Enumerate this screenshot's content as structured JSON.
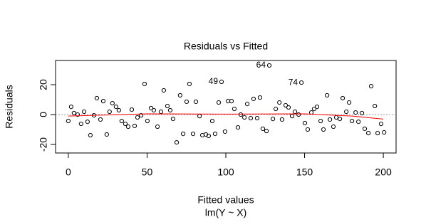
{
  "chart_data": {
    "type": "scatter",
    "title": "Residuals vs Fitted",
    "x_label": "Fitted values",
    "subtitle": "lm(Y ~ X)",
    "y_label": "Residuals",
    "xlim": [
      -8.1,
      208.1
    ],
    "ylim": [
      -25.7,
      36.2
    ],
    "xticks": [
      0,
      50,
      100,
      150,
      200
    ],
    "yticks": [
      -20,
      0,
      20
    ],
    "hline": 0,
    "color": "#000000",
    "smooth_color": "#ff0000",
    "x": [
      0,
      1.8,
      3.6,
      5.9,
      8.1,
      10,
      12.2,
      14,
      16.3,
      18.1,
      20.4,
      22.2,
      24.4,
      26.2,
      28,
      30.3,
      32.1,
      33.9,
      36.2,
      38,
      40.3,
      42.1,
      43.9,
      46.2,
      48.4,
      50.2,
      52.5,
      54.3,
      56.6,
      58.8,
      60.6,
      62.9,
      64.7,
      66.5,
      68.8,
      71,
      72.9,
      75.1,
      76.9,
      79.2,
      81,
      83.3,
      85.1,
      87.3,
      89.1,
      91.4,
      93.2,
      95.5,
      97.3,
      99.5,
      101.4,
      103.6,
      105.4,
      107.7,
      109.5,
      111.8,
      113.6,
      115.8,
      117.6,
      119.9,
      121.7,
      123.5,
      125.8,
      127.6,
      129.9,
      131.7,
      134,
      135.7,
      138,
      139.8,
      142.1,
      143.9,
      146.2,
      148,
      150.2,
      152,
      154.3,
      156.1,
      157.9,
      160.2,
      162,
      164.3,
      166.1,
      168.3,
      170.1,
      172.4,
      174.2,
      176.5,
      178.3,
      180.1,
      182.4,
      184.2,
      186.4,
      188.2,
      190.5,
      192.3,
      194.6,
      196.4,
      198.6,
      200.5
    ],
    "values": [
      -4.3,
      5.2,
      1,
      0,
      -6.2,
      1.9,
      -4.8,
      -13.8,
      -0.5,
      11,
      -3.3,
      9,
      -13.3,
      1.9,
      7.6,
      5.2,
      2.9,
      -4.3,
      -6.2,
      -8.1,
      3.3,
      -7.6,
      -1.9,
      -0.5,
      20.5,
      -4.3,
      4.3,
      2.9,
      -8.1,
      1.9,
      16.2,
      5.7,
      2.9,
      -2.9,
      -18.6,
      12.9,
      -12.9,
      8.6,
      20.5,
      -12.9,
      8.6,
      -1,
      -13.8,
      -13.3,
      -14.3,
      -4.3,
      -12.9,
      8.1,
      21.9,
      -11.4,
      9,
      9,
      3.8,
      -8.6,
      0,
      -1.9,
      7.1,
      -2.4,
      10.5,
      -2.4,
      11.4,
      -9.5,
      -11,
      32.9,
      -2.9,
      3.8,
      8.1,
      -3.3,
      6.2,
      4.8,
      -1,
      1.9,
      0,
      21.4,
      -5.7,
      -10,
      1.4,
      3.8,
      5.2,
      -4.3,
      -10,
      12.9,
      -3.3,
      -8.1,
      -1.9,
      -2.9,
      11,
      1.9,
      8.1,
      -4.3,
      1.4,
      -4.8,
      1,
      -9.5,
      -12.4,
      19,
      5.7,
      -12.4,
      -6.2,
      -11.9
    ],
    "smooth": {
      "x": [
        0,
        50,
        100,
        150,
        180,
        200
      ],
      "y": [
        -1,
        0.5,
        0.3,
        0.5,
        -1,
        -3
      ]
    },
    "annotations": [
      {
        "label": "64",
        "x": 127.6,
        "y": 32.9
      },
      {
        "label": "49",
        "x": 97.3,
        "y": 21.9
      },
      {
        "label": "74",
        "x": 148,
        "y": 21.4
      }
    ]
  }
}
